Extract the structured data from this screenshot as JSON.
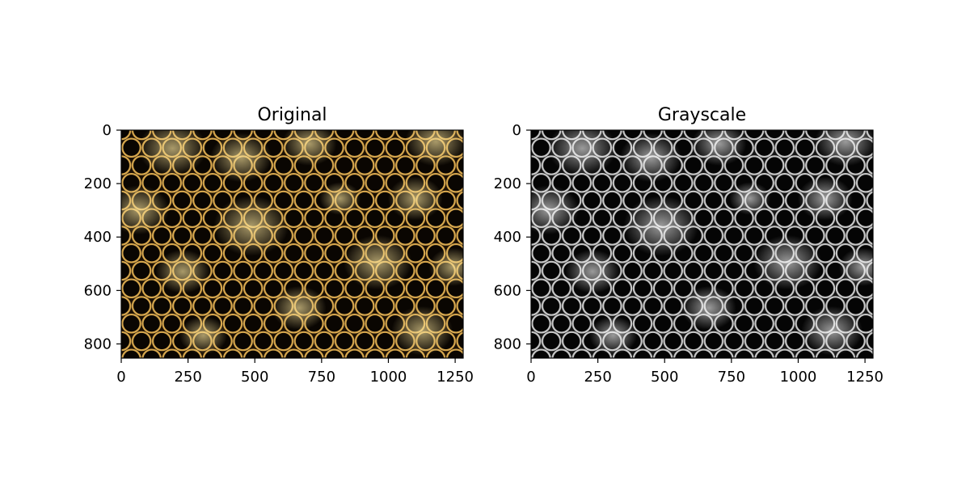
{
  "chart_data": [
    {
      "type": "heatmap",
      "title": "Original",
      "colormap": "gold",
      "x_ticks": [
        "0",
        "250",
        "500",
        "750",
        "1000",
        "1250"
      ],
      "y_ticks": [
        "0",
        "200",
        "400",
        "600",
        "800"
      ],
      "xlim": [
        0,
        1280
      ],
      "ylim": [
        853,
        0
      ],
      "grid": false
    },
    {
      "type": "heatmap",
      "title": "Grayscale",
      "colormap": "gray",
      "x_ticks": [
        "0",
        "250",
        "500",
        "750",
        "1000",
        "1250"
      ],
      "y_ticks": [
        "0",
        "200",
        "400",
        "600",
        "800"
      ],
      "xlim": [
        0,
        1280
      ],
      "ylim": [
        853,
        0
      ],
      "grid": false
    }
  ]
}
